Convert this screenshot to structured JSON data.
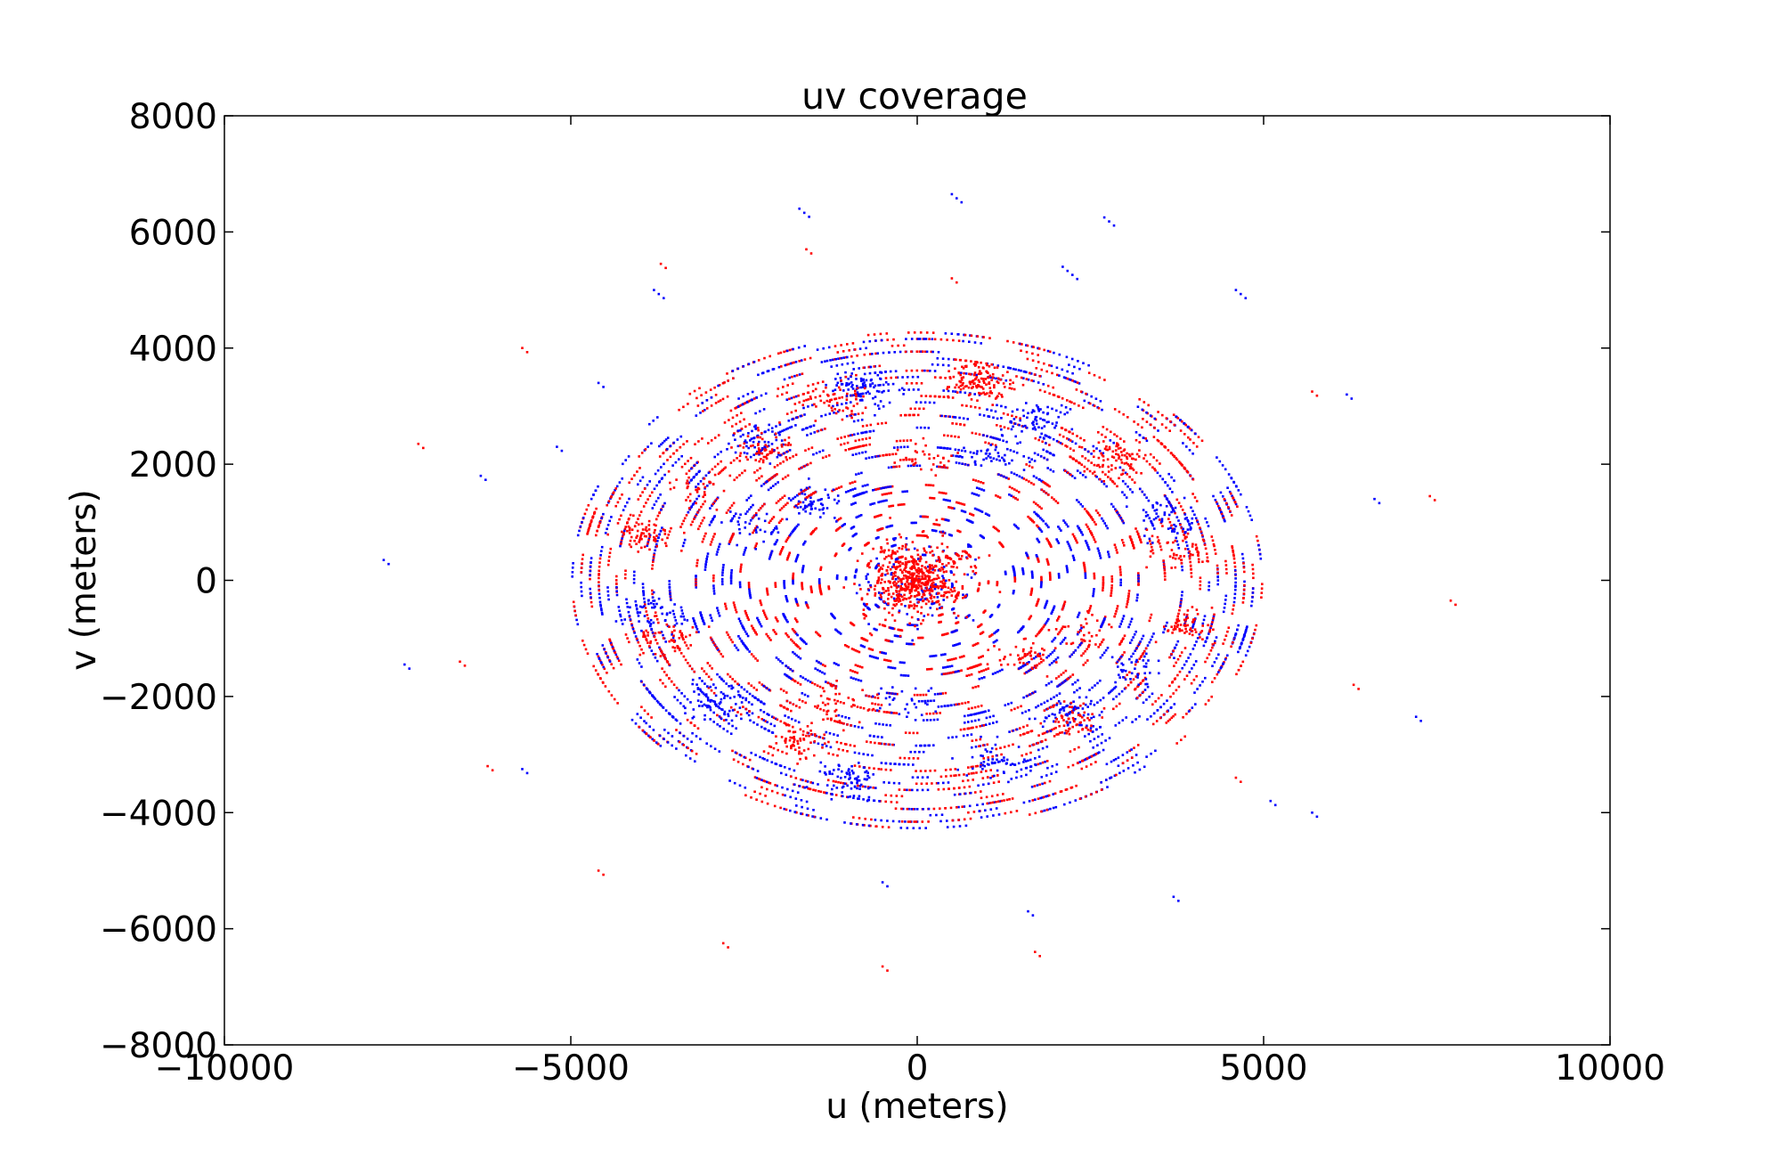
{
  "chart_data": {
    "type": "scatter",
    "title": "uv coverage",
    "xlabel": "u (meters)",
    "ylabel": "v (meters)",
    "xlim": [
      -10000,
      10000
    ],
    "ylim": [
      -8000,
      8000
    ],
    "grid": false,
    "xticks": [
      -10000,
      -5000,
      0,
      5000,
      10000
    ],
    "xtick_labels": [
      "−10000",
      "−5000",
      "0",
      "5000",
      "10000"
    ],
    "yticks": [
      -8000,
      -6000,
      -4000,
      -2000,
      0,
      2000,
      4000,
      6000,
      8000
    ],
    "ytick_labels": [
      "−8000",
      "−6000",
      "−4000",
      "−2000",
      "0",
      "2000",
      "4000",
      "6000",
      "8000"
    ],
    "point_symmetry": "Each visibility (u, v) has a conjugate point at (−u, −v) drawn in the other colour",
    "series": [
      {
        "color": "#0000ff",
        "clusters": [
          {
            "u": -1700,
            "v": 6400,
            "n": 3
          },
          {
            "u": 500,
            "v": 6650,
            "n": 3
          },
          {
            "u": 2700,
            "v": 6250,
            "n": 3
          },
          {
            "u": -3800,
            "v": 5000,
            "n": 3
          },
          {
            "u": 2100,
            "v": 5400,
            "n": 4
          },
          {
            "u": 4600,
            "v": 5000,
            "n": 3
          },
          {
            "u": -800,
            "v": 3300,
            "n": 60
          },
          {
            "u": 1700,
            "v": 2750,
            "n": 55
          },
          {
            "u": -2300,
            "v": 2400,
            "n": 40
          },
          {
            "u": 1100,
            "v": 2150,
            "n": 35
          },
          {
            "u": -1500,
            "v": 1300,
            "n": 45
          },
          {
            "u": 3600,
            "v": 1000,
            "n": 45
          },
          {
            "u": -2400,
            "v": 900,
            "n": 30
          },
          {
            "u": -3800,
            "v": -500,
            "n": 40
          },
          {
            "u": -2900,
            "v": -2100,
            "n": 70
          },
          {
            "u": 2200,
            "v": -2300,
            "n": 50
          },
          {
            "u": 3200,
            "v": -1600,
            "n": 35
          },
          {
            "u": -1000,
            "v": -3400,
            "n": 70
          },
          {
            "u": 1100,
            "v": -3100,
            "n": 45
          },
          {
            "u": -200,
            "v": -2100,
            "n": 30
          },
          {
            "u": -7700,
            "v": 350,
            "n": 2
          },
          {
            "u": -7400,
            "v": -1450,
            "n": 2
          },
          {
            "u": -6300,
            "v": 1800,
            "n": 2
          },
          {
            "u": -5700,
            "v": -3250,
            "n": 2
          },
          {
            "u": -5200,
            "v": 2300,
            "n": 2
          },
          {
            "u": 6600,
            "v": 1400,
            "n": 2
          },
          {
            "u": 7200,
            "v": -2350,
            "n": 2
          },
          {
            "u": 5700,
            "v": -4000,
            "n": 2
          },
          {
            "u": 5100,
            "v": -3800,
            "n": 2
          },
          {
            "u": 3700,
            "v": -5450,
            "n": 2
          },
          {
            "u": 1600,
            "v": -5700,
            "n": 2
          },
          {
            "u": -500,
            "v": -5200,
            "n": 2
          },
          {
            "u": 6200,
            "v": 3200,
            "n": 2
          },
          {
            "u": -4600,
            "v": 3400,
            "n": 2
          }
        ]
      },
      {
        "color": "#ff0000",
        "clusters": [
          {
            "u": 800,
            "v": 3450,
            "n": 60
          },
          {
            "u": -1700,
            "v": -2750,
            "n": 55
          },
          {
            "u": 2300,
            "v": -2400,
            "n": 40
          },
          {
            "u": -1100,
            "v": -2150,
            "n": 35
          },
          {
            "u": 1500,
            "v": -1300,
            "n": 45
          },
          {
            "u": -3600,
            "v": -1000,
            "n": 45
          },
          {
            "u": 2400,
            "v": -900,
            "n": 30
          },
          {
            "u": 3800,
            "v": 500,
            "n": 40
          },
          {
            "u": 2900,
            "v": 2100,
            "n": 70
          },
          {
            "u": -2200,
            "v": 2300,
            "n": 50
          },
          {
            "u": -3200,
            "v": 1600,
            "n": 35
          },
          {
            "u": 1000,
            "v": 3400,
            "n": 70
          },
          {
            "u": -1100,
            "v": 3100,
            "n": 45
          },
          {
            "u": 200,
            "v": 2100,
            "n": 30
          },
          {
            "u": -3900,
            "v": 800,
            "n": 55
          },
          {
            "u": 3900,
            "v": -800,
            "n": 55
          },
          {
            "u": 7700,
            "v": -350,
            "n": 2
          },
          {
            "u": 7400,
            "v": 1450,
            "n": 2
          },
          {
            "u": 6300,
            "v": -1800,
            "n": 2
          },
          {
            "u": 5700,
            "v": 3250,
            "n": 2
          },
          {
            "u": -6600,
            "v": -1400,
            "n": 2
          },
          {
            "u": -7200,
            "v": 2350,
            "n": 2
          },
          {
            "u": -5700,
            "v": 4000,
            "n": 2
          },
          {
            "u": -3700,
            "v": 5450,
            "n": 2
          },
          {
            "u": -1600,
            "v": 5700,
            "n": 2
          },
          {
            "u": 500,
            "v": 5200,
            "n": 2
          },
          {
            "u": -6200,
            "v": -3200,
            "n": 2
          },
          {
            "u": 4600,
            "v": -3400,
            "n": 2
          },
          {
            "u": -2800,
            "v": -6250,
            "n": 2
          },
          {
            "u": -500,
            "v": -6650,
            "n": 2
          },
          {
            "u": 1700,
            "v": -6400,
            "n": 2
          },
          {
            "u": -4600,
            "v": -5000,
            "n": 2
          }
        ]
      }
    ],
    "core_cluster": {
      "u": 0,
      "v": 0,
      "colors": [
        "#0000ff",
        "#ff0000"
      ],
      "n": 400
    }
  }
}
